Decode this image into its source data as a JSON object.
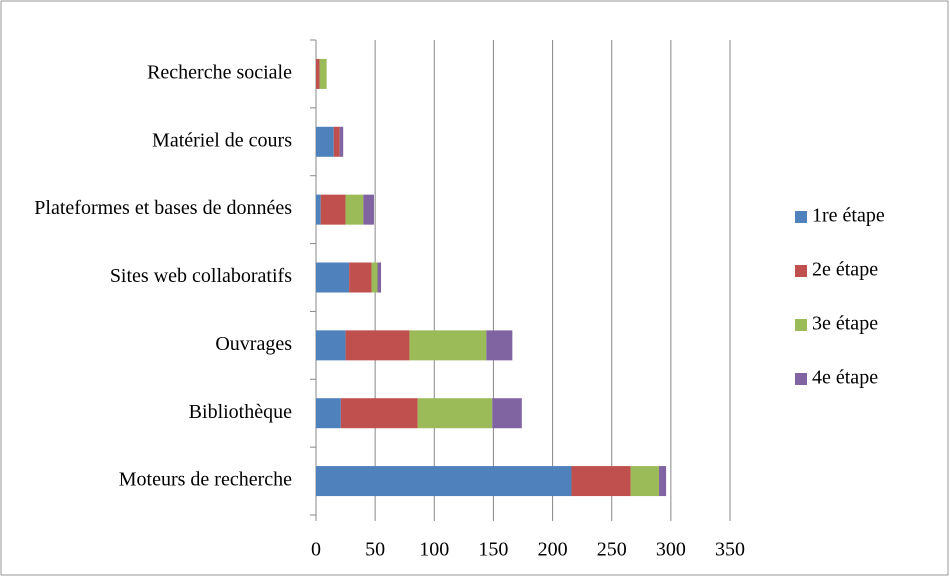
{
  "chart_data": {
    "type": "stacked-barh",
    "categories": [
      "Moteurs de recherche",
      "Bibliothèque",
      "Ouvrages",
      "Sites web collaboratifs",
      "Plateformes et bases de données",
      "Matériel de cours",
      "Recherche sociale"
    ],
    "series": [
      {
        "name": "1re étape",
        "color": "#4f81bd",
        "values": [
          216,
          21,
          25,
          28,
          4,
          15,
          0
        ]
      },
      {
        "name": "2e étape",
        "color": "#c0504d",
        "values": [
          50,
          65,
          54,
          19,
          21,
          5,
          3
        ]
      },
      {
        "name": "3e étape",
        "color": "#9bbb59",
        "values": [
          24,
          63,
          65,
          5,
          15,
          0,
          6
        ]
      },
      {
        "name": "4e étape",
        "color": "#8064a2",
        "values": [
          6,
          25,
          22,
          3,
          9,
          3,
          0
        ]
      }
    ],
    "xlim": [
      0,
      350
    ],
    "xticks": [
      0,
      50,
      100,
      150,
      200,
      250,
      300,
      350
    ],
    "grid": true,
    "legend": "right"
  }
}
